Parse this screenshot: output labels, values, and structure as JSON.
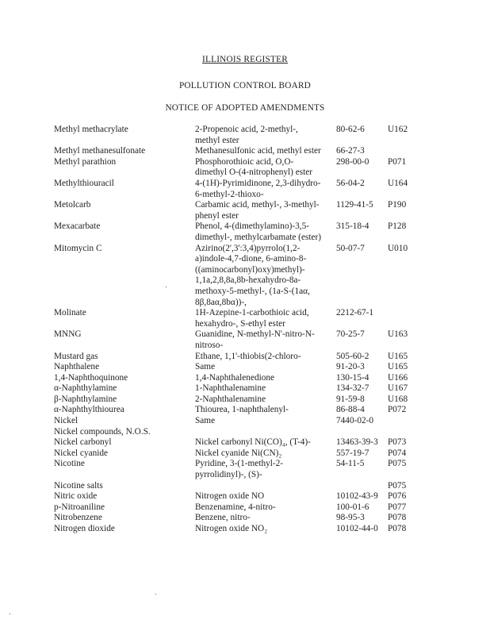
{
  "header": {
    "register": "ILLINOIS REGISTER",
    "board": "POLLUTION CONTROL BOARD",
    "notice": "NOTICE OF ADOPTED AMENDMENTS"
  },
  "rows": [
    {
      "name": "Methyl methacrylate",
      "chem": [
        "2-Propenoic acid, 2-methyl-,",
        "methyl ester"
      ],
      "cas": "80-62-6",
      "code": "U162"
    },
    {
      "name": "Methyl methanesulfonate",
      "chem": [
        "Methanesulfonic acid, methyl ester"
      ],
      "cas": "66-27-3",
      "code": ""
    },
    {
      "name": "Methyl parathion",
      "chem": [
        "Phosphorothioic acid, O,O-",
        "dimethyl O-(4-nitrophenyl) ester"
      ],
      "cas": "298-00-0",
      "code": "P071"
    },
    {
      "name": "Methylthiouracil",
      "chem": [
        "4-(1H)-Pyrimidinone, 2,3-dihydro-",
        "6-methyl-2-thioxo-"
      ],
      "cas": "56-04-2",
      "code": "U164"
    },
    {
      "name": "Metolcarb",
      "chem": [
        "Carbamic acid, methyl-, 3-methyl-",
        "phenyl ester"
      ],
      "cas": "1129-41-5",
      "code": "P190"
    },
    {
      "name": "Mexacarbate",
      "chem": [
        "Phenol, 4-(dimethylamino)-3,5-",
        "dimethyl-, methylcarbamate (ester)"
      ],
      "cas": "315-18-4",
      "code": "P128"
    },
    {
      "name": "Mitomycin C",
      "chem": [
        "Azirino(2',3':3,4)pyrrolo(1,2-",
        "a)indole-4,7-dione, 6-amino-8-",
        "((aminocarbonyl)oxy)methyl)-",
        "1,1a,2,8,8a,8b-hexahydro-8a-",
        "methoxy-5-methyl-, (1a-S-(1aα,",
        "8β,8aα,8bα))-,"
      ],
      "cas": "50-07-7",
      "code": "U010"
    },
    {
      "name": "Molinate",
      "chem": [
        "1H-Azepine-1-carbothioic acid,",
        "hexahydro-, S-ethyl ester"
      ],
      "cas": "2212-67-1",
      "code": ""
    },
    {
      "name": "MNNG",
      "chem": [
        "Guanidine, N-methyl-N'-nitro-N-",
        "nitroso-"
      ],
      "cas": "70-25-7",
      "code": "U163"
    },
    {
      "name": "Mustard gas",
      "chem": [
        "Ethane, 1,1'-thiobis(2-chloro-"
      ],
      "cas": "505-60-2",
      "code": "U165"
    },
    {
      "name": "Naphthalene",
      "chem": [
        "Same"
      ],
      "cas": "91-20-3",
      "code": "U165"
    },
    {
      "name": "1,4-Naphthoquinone",
      "chem": [
        "1,4-Naphthalenedione"
      ],
      "cas": "130-15-4",
      "code": "U166"
    },
    {
      "name": "α-Naphthylamine",
      "chem": [
        "1-Naphthalenamine"
      ],
      "cas": "134-32-7",
      "code": "U167"
    },
    {
      "name": "β-Naphthylamine",
      "chem": [
        "2-Naphthalenamine"
      ],
      "cas": "91-59-8",
      "code": "U168"
    },
    {
      "name": "α-Naphthylthiourea",
      "chem": [
        "Thiourea, 1-naphthalenyl-"
      ],
      "cas": "86-88-4",
      "code": "P072"
    },
    {
      "name": "Nickel",
      "chem": [
        "Same"
      ],
      "cas": "7440-02-0",
      "code": ""
    },
    {
      "name": "Nickel compounds, N.O.S.",
      "chem": [
        ""
      ],
      "cas": "",
      "code": ""
    },
    {
      "name": "Nickel carbonyl",
      "chem": [
        "Nickel carbonyl Ni(CO)₄, (T-4)-"
      ],
      "cas": "13463-39-3",
      "code": "P073"
    },
    {
      "name": "Nickel cyanide",
      "chem": [
        "Nickel cyanide Ni(CN)₂"
      ],
      "cas": "557-19-7",
      "code": "P074"
    },
    {
      "name": "Nicotine",
      "chem": [
        "Pyridine, 3-(1-methyl-2-",
        "pyrrolidinyl)-, (S)-"
      ],
      "cas": "54-11-5",
      "code": "P075"
    },
    {
      "name": "Nicotine salts",
      "chem": [
        ""
      ],
      "cas": "",
      "code": "P075"
    },
    {
      "name": "Nitric oxide",
      "chem": [
        "Nitrogen oxide NO"
      ],
      "cas": "10102-43-9",
      "code": "P076"
    },
    {
      "name": "p-Nitroaniline",
      "chem": [
        "Benzenamine, 4-nitro-"
      ],
      "cas": "100-01-6",
      "code": "P077"
    },
    {
      "name": "Nitrobenzene",
      "chem": [
        "Benzene, nitro-"
      ],
      "cas": "98-95-3",
      "code": "P078"
    },
    {
      "name": "Nitrogen dioxide",
      "chem": [
        "Nitrogen oxide NO₂"
      ],
      "cas": "10102-44-0",
      "code": "P078"
    }
  ]
}
